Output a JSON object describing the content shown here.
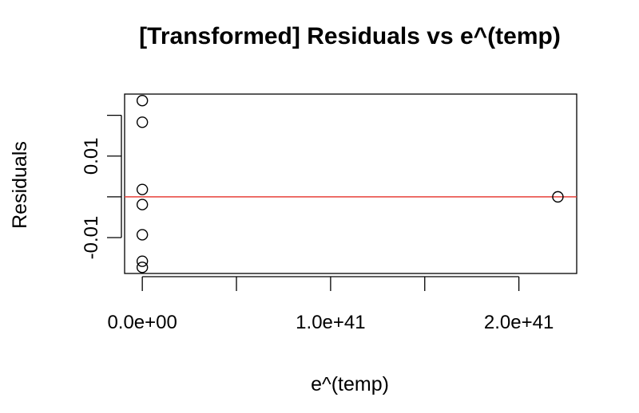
{
  "chart_data": {
    "type": "scatter",
    "title": "[Transformed] Residuals vs e^(temp)",
    "xlabel": "e^(temp)",
    "ylabel": "Residuals",
    "xlim": [
      -9.4e+39,
      2.307e+41
    ],
    "ylim": [
      -0.0188,
      0.0252
    ],
    "x_ticks": [
      {
        "value": 0,
        "label": "0.0e+00"
      },
      {
        "value": 5e+40,
        "label": ""
      },
      {
        "value": 1e+41,
        "label": "1.0e+41"
      },
      {
        "value": 1.5e+41,
        "label": ""
      },
      {
        "value": 2e+41,
        "label": "2.0e+41"
      }
    ],
    "y_ticks": [
      {
        "value": -0.01,
        "label": "-0.01"
      },
      {
        "value": 0,
        "label": ""
      },
      {
        "value": 0.01,
        "label": "0.01"
      },
      {
        "value": 0.02,
        "label": ""
      }
    ],
    "reference_line": {
      "y": 0,
      "color": "#e8413a"
    },
    "points": [
      {
        "x": 0,
        "y": 0.0236
      },
      {
        "x": 0,
        "y": 0.0183
      },
      {
        "x": 0,
        "y": 0.0018
      },
      {
        "x": 0,
        "y": -0.0019
      },
      {
        "x": 0,
        "y": -0.0093
      },
      {
        "x": 0,
        "y": -0.0158
      },
      {
        "x": 0,
        "y": -0.0173
      },
      {
        "x": 2.207e+41,
        "y": 0.0
      }
    ],
    "grid": false,
    "point_style": "open-circle"
  }
}
